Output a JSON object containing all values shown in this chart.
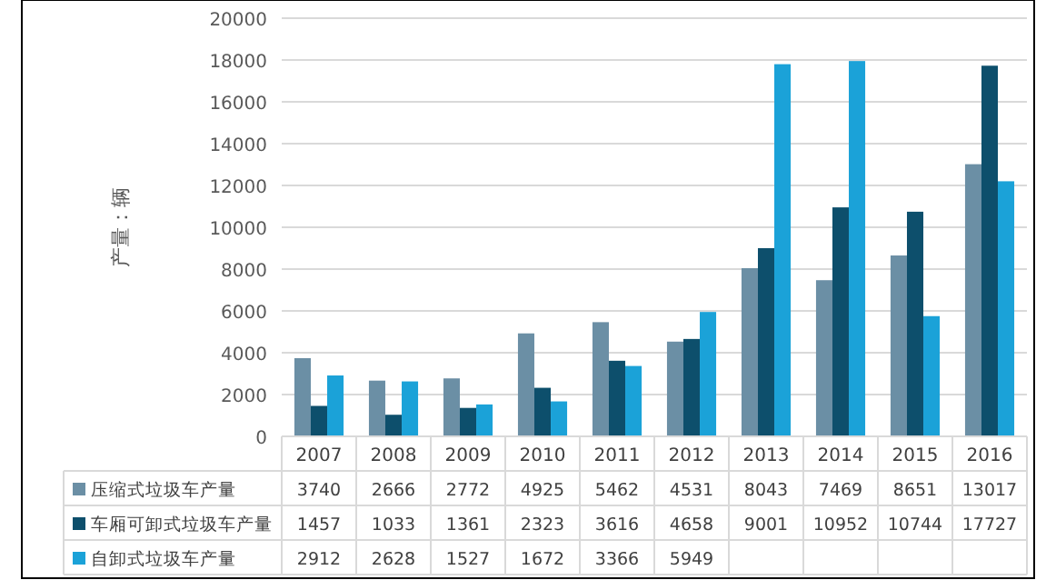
{
  "chart_data": {
    "type": "bar",
    "ylabel": "产量：辆",
    "categories": [
      "2007",
      "2008",
      "2009",
      "2010",
      "2011",
      "2012",
      "2013",
      "2014",
      "2015",
      "2016"
    ],
    "series": [
      {
        "name": "压缩式垃圾车产量",
        "color": "#6b8fa5",
        "values": [
          3740,
          2666,
          2772,
          4925,
          5462,
          4531,
          8043,
          7469,
          8651,
          13017
        ],
        "value_labels": [
          "3740",
          "2666",
          "2772",
          "4925",
          "5462",
          "4531",
          "8043",
          "7469",
          "8651",
          "13017"
        ]
      },
      {
        "name": "车厢可卸式垃圾车产量",
        "color": "#0d4f6c",
        "values": [
          1457,
          1033,
          1361,
          2323,
          3616,
          4658,
          9001,
          10952,
          10744,
          17727
        ],
        "value_labels": [
          "1457",
          "1033",
          "1361",
          "2323",
          "3616",
          "4658",
          "9001",
          "10952",
          "10744",
          "17727"
        ]
      },
      {
        "name": "自卸式垃圾车产量",
        "color": "#1ba2d8",
        "values": [
          2912,
          2628,
          1527,
          1672,
          3366,
          5949,
          17800,
          17950,
          5750,
          12200
        ],
        "value_labels": [
          "2912",
          "2628",
          "1527",
          "1672",
          "3366",
          "5949",
          null,
          null,
          null,
          null
        ]
      }
    ],
    "ylim": [
      0,
      20000
    ],
    "yticks": [
      0,
      2000,
      4000,
      6000,
      8000,
      10000,
      12000,
      14000,
      16000,
      18000,
      20000
    ],
    "grid": "y",
    "legend": "bottom"
  }
}
